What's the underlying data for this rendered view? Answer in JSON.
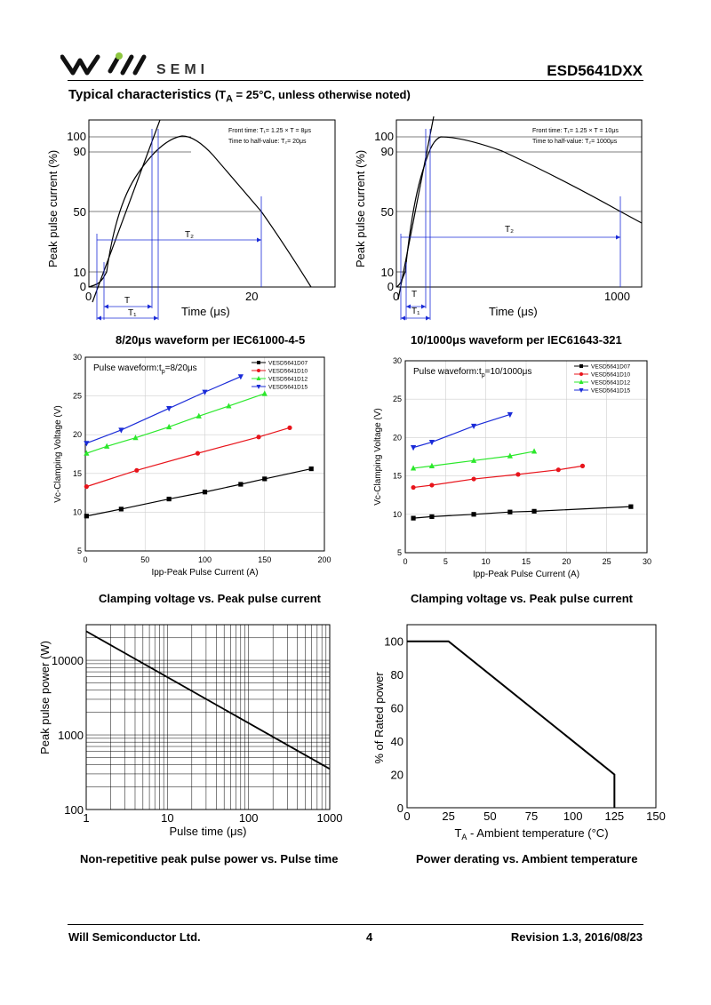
{
  "header": {
    "logo_text": "SEMI",
    "doc_title": "ESD5641DXX",
    "section_title": "Typical characteristics",
    "section_cond": "(T",
    "section_cond_sub": "A",
    "section_cond_rest": " = 25°C, unless otherwise noted)"
  },
  "waveform1": {
    "caption": "8/20μs waveform per IEC61000-4-5",
    "ylabel": "Peak pulse current (%)",
    "xlabel": "Time (μs)",
    "yticks": [
      "100",
      "90",
      "50",
      "10",
      "0"
    ],
    "xticks": [
      "0",
      "20"
    ],
    "note1": "Front time: T₁= 1.25 × T = 8μs",
    "note2": "Time to half-value: T₂= 20μs",
    "t_label": "T",
    "t1_label": "T₁",
    "t2_label": "T₂"
  },
  "waveform2": {
    "caption": "10/1000μs waveform per IEC61643-321",
    "ylabel": "Peak pulse current (%)",
    "xlabel": "Time (μs)",
    "yticks": [
      "100",
      "90",
      "50",
      "10",
      "0"
    ],
    "xticks": [
      "0",
      "1000"
    ],
    "note1": "Front time: T₁= 1.25 × T = 10μs",
    "note2": "Time to half-value: T₂= 1000μs",
    "t_label": "T",
    "t1_label": "T₁",
    "t2_label": "T₂"
  },
  "colors": {
    "D07": "#000000",
    "D10": "#e8141b",
    "D12": "#2be82b",
    "D15": "#1a2bd8",
    "frame": "#000000"
  },
  "chart_data": [
    {
      "type": "line",
      "id": "clamp1",
      "caption": "Clamping voltage vs. Peak pulse current",
      "annotation": "Pulse waveform:t",
      "annotation_sub": "p",
      "annotation_rest": "=8/20μs",
      "xlabel": "Ipp-Peak Pulse Current (A)",
      "ylabel": "Vc-Clamping Voltage (V)",
      "xlim": [
        0,
        200
      ],
      "ylim": [
        5,
        30
      ],
      "xticks": [
        0,
        50,
        100,
        150,
        200
      ],
      "yticks": [
        5,
        10,
        15,
        20,
        25,
        30
      ],
      "grid": true,
      "legend": "top-right",
      "series": [
        {
          "name": "VESD5641D07",
          "marker": "square",
          "color_key": "D07",
          "x": [
            1,
            30,
            70,
            100,
            130,
            150,
            189
          ],
          "y": [
            9.5,
            10.4,
            11.7,
            12.6,
            13.6,
            14.3,
            15.6
          ]
        },
        {
          "name": "VESD5641D10",
          "marker": "circle",
          "color_key": "D10",
          "x": [
            1,
            43,
            94,
            145,
            171
          ],
          "y": [
            13.3,
            15.4,
            17.6,
            19.7,
            20.9
          ]
        },
        {
          "name": "VESD5641D12",
          "marker": "triangle-up",
          "color_key": "D12",
          "x": [
            1,
            18,
            42,
            70,
            95,
            120,
            150
          ],
          "y": [
            17.6,
            18.5,
            19.6,
            21.0,
            22.4,
            23.7,
            25.3
          ]
        },
        {
          "name": "VESD5641D15",
          "marker": "triangle-down",
          "color_key": "D15",
          "x": [
            1,
            30,
            70,
            100,
            130
          ],
          "y": [
            18.9,
            20.6,
            23.4,
            25.5,
            27.5
          ]
        }
      ]
    },
    {
      "type": "line",
      "id": "clamp2",
      "caption": "Clamping voltage vs. Peak pulse current",
      "annotation": "Pulse waveform:t",
      "annotation_sub": "p",
      "annotation_rest": "=10/1000μs",
      "xlabel": "Ipp-Peak Pulse Current (A)",
      "ylabel": "Vc-Clamping Voltage (V)",
      "xlim": [
        0,
        30
      ],
      "ylim": [
        5,
        30
      ],
      "xticks": [
        0,
        5,
        10,
        15,
        20,
        25,
        30
      ],
      "yticks": [
        5,
        10,
        15,
        20,
        25,
        30
      ],
      "grid": true,
      "legend": "top-right",
      "series": [
        {
          "name": "VESD5641D07",
          "marker": "square",
          "color_key": "D07",
          "x": [
            1,
            3.3,
            8.5,
            13,
            16,
            28
          ],
          "y": [
            9.5,
            9.7,
            10,
            10.3,
            10.4,
            11
          ]
        },
        {
          "name": "VESD5641D10",
          "marker": "circle",
          "color_key": "D10",
          "x": [
            1,
            3.3,
            8.5,
            14,
            19,
            22
          ],
          "y": [
            13.5,
            13.8,
            14.6,
            15.2,
            15.8,
            16.3
          ]
        },
        {
          "name": "VESD5641D12",
          "marker": "triangle-up",
          "color_key": "D12",
          "x": [
            1,
            3.3,
            8.5,
            13,
            16
          ],
          "y": [
            16,
            16.3,
            17,
            17.6,
            18.2
          ]
        },
        {
          "name": "VESD5641D15",
          "marker": "triangle-down",
          "color_key": "D15",
          "x": [
            1,
            3.3,
            8.5,
            13
          ],
          "y": [
            18.7,
            19.4,
            21.5,
            23
          ]
        }
      ]
    },
    {
      "type": "line",
      "id": "power",
      "caption": "Non-repetitive peak pulse power vs. Pulse time",
      "xlabel": "Pulse time (μs)",
      "ylabel": "Peak pulse power (W)",
      "xscale": "log",
      "yscale": "log",
      "xlim": [
        1,
        1000
      ],
      "ylim": [
        100,
        30000
      ],
      "xticks": [
        1,
        10,
        100,
        1000
      ],
      "yticks": [
        100,
        1000,
        10000
      ],
      "grid": true,
      "series": [
        {
          "x": [
            1,
            1000
          ],
          "y": [
            24500,
            350
          ]
        }
      ]
    },
    {
      "type": "line",
      "id": "derating",
      "caption": "Power derating vs. Ambient temperature",
      "xlabel": "T",
      "xlabel_sub": "A",
      "xlabel_rest": " - Ambient temperature (°C)",
      "ylabel": "% of Rated power",
      "xlim": [
        0,
        150
      ],
      "ylim": [
        0,
        110
      ],
      "xticks": [
        0,
        25,
        50,
        75,
        100,
        125,
        150
      ],
      "yticks": [
        0,
        20,
        40,
        60,
        80,
        100
      ],
      "grid": false,
      "series": [
        {
          "x": [
            0,
            25,
            125,
            125
          ],
          "y": [
            100,
            100,
            20,
            0
          ]
        }
      ]
    }
  ],
  "footer": {
    "company": "Will Semiconductor Ltd.",
    "page": "4",
    "revision": "Revision 1.3, 2016/08/23"
  }
}
